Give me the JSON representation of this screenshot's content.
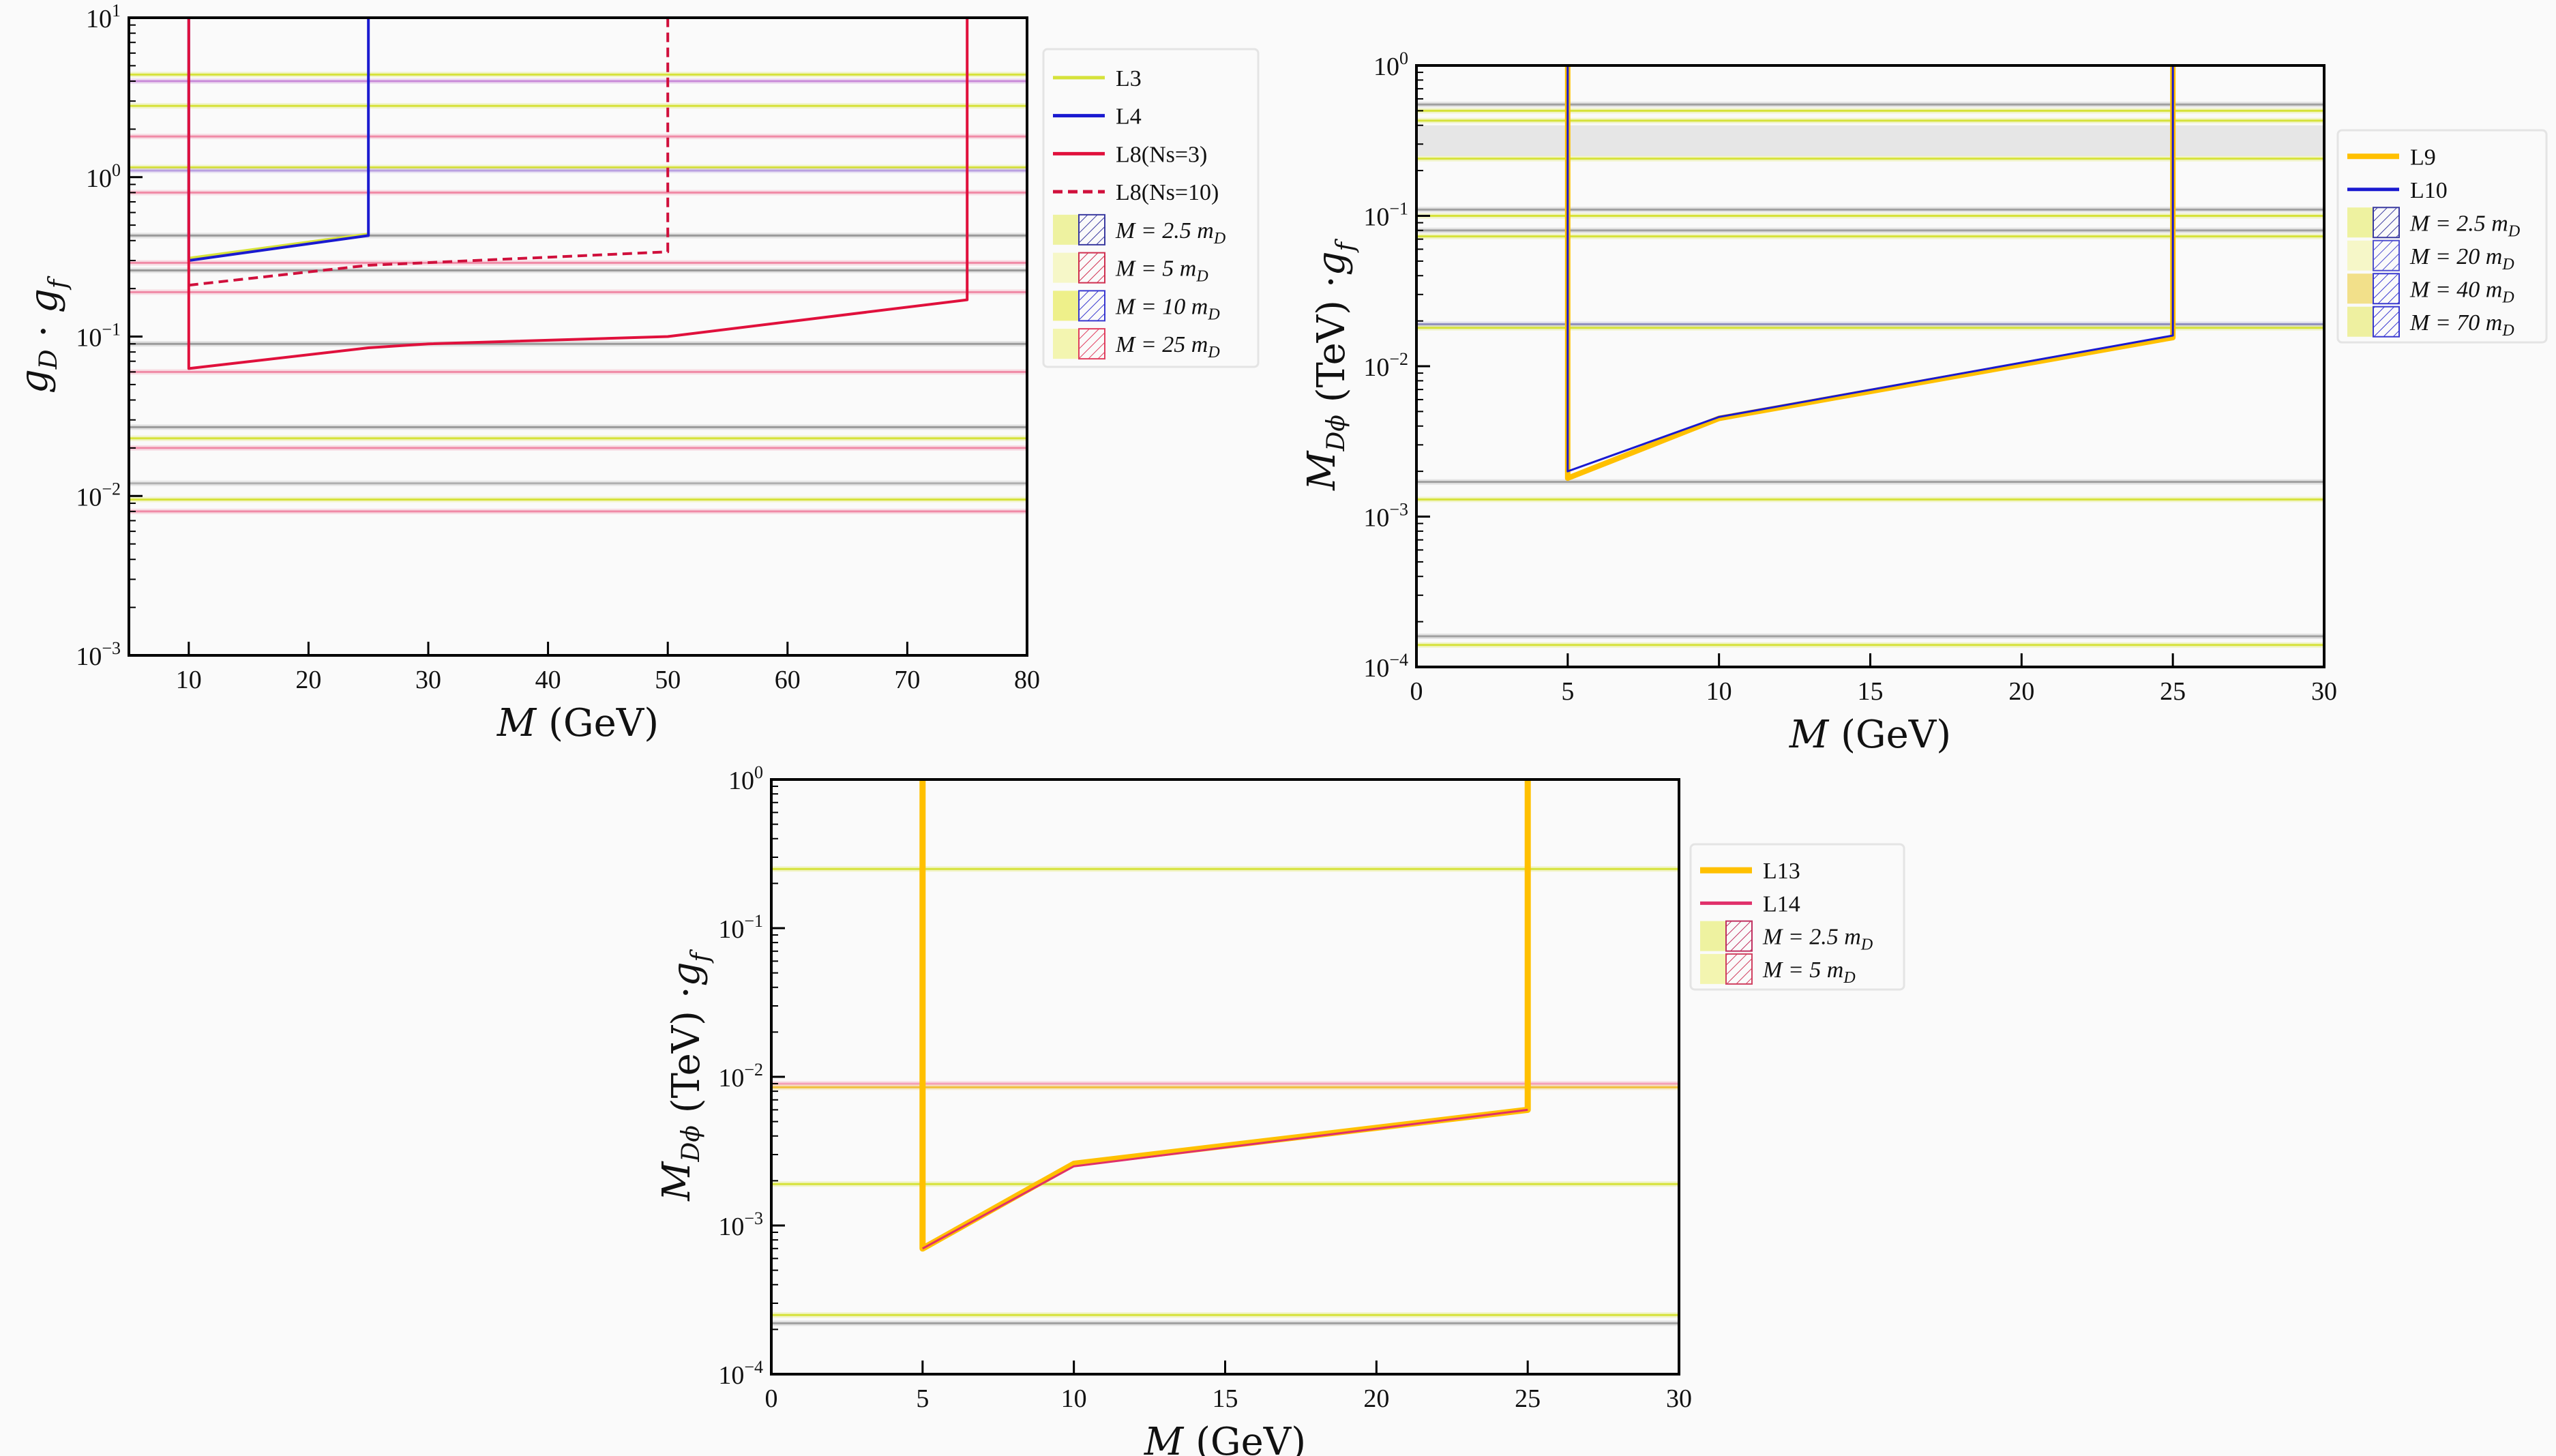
{
  "chart_data": [
    {
      "type": "line",
      "xlabel": [
        [
          "M",
          ""
        ],
        [
          " (GeV)",
          ""
        ]
      ],
      "ylabel": [
        [
          "g",
          "D"
        ],
        [
          " · ",
          ""
        ],
        [
          "g",
          "f"
        ]
      ],
      "xlim": [
        5,
        80
      ],
      "ylim": [
        0.001,
        10
      ],
      "yscale": "log",
      "xticks": [
        10,
        20,
        30,
        40,
        50,
        60,
        70,
        80
      ],
      "yticks": [
        {
          "base": "10",
          "exp": "−3",
          "v": 0.001
        },
        {
          "base": "10",
          "exp": "−2",
          "v": 0.01
        },
        {
          "base": "10",
          "exp": "−1",
          "v": 0.1
        },
        {
          "base": "10",
          "exp": "0",
          "v": 1
        },
        {
          "base": "10",
          "exp": "1",
          "v": 10
        }
      ],
      "grid": false,
      "legend_position": "outside-right-top",
      "bands": [
        {
          "y": 4.4,
          "color": "#d6e23a"
        },
        {
          "y": 4.0,
          "color": "#c98ad8"
        },
        {
          "y": 2.8,
          "color": "#d6e23a"
        },
        {
          "y": 1.8,
          "color": "#f08aa6"
        },
        {
          "y": 1.15,
          "color": "#d6e23a"
        },
        {
          "y": 1.1,
          "color": "#b9a0e0"
        },
        {
          "y": 0.8,
          "color": "#f08aa6"
        },
        {
          "y": 0.43,
          "color": "#9a9a9a"
        },
        {
          "y": 0.29,
          "color": "#f08aa6"
        },
        {
          "y": 0.26,
          "color": "#9a9a9a"
        },
        {
          "y": 0.19,
          "color": "#f08aa6"
        },
        {
          "y": 0.09,
          "color": "#9a9a9a"
        },
        {
          "y": 0.06,
          "color": "#f08aa6"
        },
        {
          "y": 0.027,
          "color": "#9a9a9a"
        },
        {
          "y": 0.023,
          "color": "#d6e23a"
        },
        {
          "y": 0.02,
          "color": "#f08aa6"
        },
        {
          "y": 0.012,
          "color": "#b0b0b0"
        },
        {
          "y": 0.0095,
          "color": "#d6e23a"
        },
        {
          "y": 0.008,
          "color": "#f08aa6"
        }
      ],
      "series": [
        {
          "name": "L3",
          "color": "#d6e23a",
          "width": 4,
          "dash": "",
          "points": [
            [
              10,
              0.31
            ],
            [
              25,
              0.44
            ]
          ]
        },
        {
          "name": "L4",
          "color": "#1a1ad0",
          "width": 4,
          "dash": "",
          "points": [
            [
              10,
              10
            ],
            [
              10,
              0.3
            ],
            [
              25,
              0.43
            ],
            [
              25,
              10
            ]
          ]
        },
        {
          "name": "L8(Ns=3)",
          "color": "#e0103c",
          "width": 4,
          "dash": "",
          "points": [
            [
              10,
              10
            ],
            [
              10,
              0.063
            ],
            [
              25,
              0.085
            ],
            [
              30,
              0.09
            ],
            [
              50,
              0.1
            ],
            [
              75,
              0.17
            ],
            [
              75,
              10
            ]
          ]
        },
        {
          "name": "L8(Ns=10)",
          "color": "#d0103c",
          "width": 4,
          "dash": "14,8",
          "points": [
            [
              10,
              0.21
            ],
            [
              25,
              0.28
            ],
            [
              50,
              0.34
            ],
            [
              50,
              10
            ]
          ]
        }
      ],
      "legend": [
        {
          "kind": "line",
          "label": "L3",
          "color": "#d6e23a",
          "dash": ""
        },
        {
          "kind": "line",
          "label": "L4",
          "color": "#1a1ad0",
          "dash": ""
        },
        {
          "kind": "line",
          "label": "L8(Ns=3)",
          "color": "#e0103c",
          "dash": ""
        },
        {
          "kind": "line",
          "label": "L8(Ns=10)",
          "color": "#d0103c",
          "dash": "14,8"
        },
        {
          "kind": "patch",
          "label": "M = 2.5 m",
          "sub": "D",
          "fill": "#eef2a0",
          "hatch": "#3a3aa0"
        },
        {
          "kind": "patch",
          "label": "M = 5 m",
          "sub": "D",
          "fill": "#f6f7c8",
          "hatch": "#d03050"
        },
        {
          "kind": "patch",
          "label": "M = 10 m",
          "sub": "D",
          "fill": "#eef08a",
          "hatch": "#3a3ad0"
        },
        {
          "kind": "patch",
          "label": "M = 25 m",
          "sub": "D",
          "fill": "#f3f5b0",
          "hatch": "#e04060"
        }
      ]
    },
    {
      "type": "line",
      "xlabel": [
        [
          "M",
          ""
        ],
        [
          " (GeV)",
          ""
        ]
      ],
      "ylabel": [
        [
          "M",
          "Dϕ"
        ],
        [
          "  (TeV) ·",
          ""
        ],
        [
          "g",
          "f"
        ]
      ],
      "xlim": [
        0,
        30
      ],
      "ylim": [
        0.0001,
        1
      ],
      "yscale": "log",
      "xticks": [
        0,
        5,
        10,
        15,
        20,
        25,
        30
      ],
      "yticks": [
        {
          "base": "10",
          "exp": "−4",
          "v": 0.0001
        },
        {
          "base": "10",
          "exp": "−3",
          "v": 0.001
        },
        {
          "base": "10",
          "exp": "−2",
          "v": 0.01
        },
        {
          "base": "10",
          "exp": "−1",
          "v": 0.1
        },
        {
          "base": "10",
          "exp": "0",
          "v": 1
        }
      ],
      "grid": false,
      "legend_position": "outside-right",
      "bands": [
        {
          "y": 0.55,
          "color": "#a0a0a0"
        },
        {
          "y": 0.5,
          "color": "#d6e23a"
        },
        {
          "y": 0.43,
          "color": "#d6e23a"
        },
        {
          "y": 0.32,
          "color": "#d8d8d8",
          "thick": true
        },
        {
          "y": 0.24,
          "color": "#d6e23a"
        },
        {
          "y": 0.11,
          "color": "#a0a0a0"
        },
        {
          "y": 0.1,
          "color": "#d6e23a"
        },
        {
          "y": 0.08,
          "color": "#a0a0a0"
        },
        {
          "y": 0.073,
          "color": "#d6e23a"
        },
        {
          "y": 0.019,
          "color": "#9090c0"
        },
        {
          "y": 0.018,
          "color": "#d6e23a"
        },
        {
          "y": 0.0017,
          "color": "#a0a0a0"
        },
        {
          "y": 0.0013,
          "color": "#d6e23a"
        },
        {
          "y": 0.00016,
          "color": "#a0a0a0"
        },
        {
          "y": 0.00014,
          "color": "#d6e23a"
        }
      ],
      "series": [
        {
          "name": "L9",
          "color": "#ffc000",
          "width": 8,
          "dash": "",
          "points": [
            [
              5,
              1
            ],
            [
              5,
              0.0018
            ],
            [
              10,
              0.0045
            ],
            [
              25,
              0.0155
            ],
            [
              25,
              1
            ]
          ]
        },
        {
          "name": "L10",
          "color": "#1a1ad0",
          "width": 3,
          "dash": "",
          "points": [
            [
              5,
              1
            ],
            [
              5,
              0.002
            ],
            [
              10,
              0.0046
            ],
            [
              25,
              0.016
            ],
            [
              25,
              1
            ]
          ]
        }
      ],
      "legend": [
        {
          "kind": "line",
          "label": "L9",
          "color": "#ffc000",
          "dash": "",
          "width": 8
        },
        {
          "kind": "line",
          "label": "L10",
          "color": "#1a1ad0",
          "dash": ""
        },
        {
          "kind": "patch",
          "label": "M = 2.5 m",
          "sub": "D",
          "fill": "#eef2a0",
          "hatch": "#3a3aa0"
        },
        {
          "kind": "patch",
          "label": "M = 20 m",
          "sub": "D",
          "fill": "#f6f7c8",
          "hatch": "#5050d0"
        },
        {
          "kind": "patch",
          "label": "M = 40 m",
          "sub": "D",
          "fill": "#f2e08a",
          "hatch": "#3a3ad0"
        },
        {
          "kind": "patch",
          "label": "M = 70 m",
          "sub": "D",
          "fill": "#eef0a0",
          "hatch": "#3a3ad0"
        }
      ]
    },
    {
      "type": "line",
      "xlabel": [
        [
          "M",
          ""
        ],
        [
          " (GeV)",
          ""
        ]
      ],
      "ylabel": [
        [
          "M",
          "Dϕ"
        ],
        [
          "  (TeV) ·",
          ""
        ],
        [
          "g",
          "f"
        ]
      ],
      "xlim": [
        0,
        30
      ],
      "ylim": [
        0.0001,
        1
      ],
      "yscale": "log",
      "xticks": [
        0,
        5,
        10,
        15,
        20,
        25,
        30
      ],
      "yticks": [
        {
          "base": "10",
          "exp": "−4",
          "v": 0.0001
        },
        {
          "base": "10",
          "exp": "−3",
          "v": 0.001
        },
        {
          "base": "10",
          "exp": "−2",
          "v": 0.01
        },
        {
          "base": "10",
          "exp": "−1",
          "v": 0.1
        },
        {
          "base": "10",
          "exp": "0",
          "v": 1
        }
      ],
      "grid": false,
      "legend_position": "outside-right",
      "bands": [
        {
          "y": 0.25,
          "color": "#d6e23a"
        },
        {
          "y": 0.009,
          "color": "#f5a0b8"
        },
        {
          "y": 0.0085,
          "color": "#f0c040"
        },
        {
          "y": 0.0019,
          "color": "#d6e23a"
        },
        {
          "y": 0.00025,
          "color": "#d6e23a"
        },
        {
          "y": 0.00022,
          "color": "#a0a0a0"
        }
      ],
      "series": [
        {
          "name": "L13",
          "color": "#ffc000",
          "width": 9,
          "dash": "",
          "points": [
            [
              5,
              1
            ],
            [
              5,
              0.0007
            ],
            [
              10,
              0.0026
            ],
            [
              25,
              0.006
            ],
            [
              25,
              1
            ]
          ]
        },
        {
          "name": "L14",
          "color": "#e0306a",
          "width": 3,
          "dash": "",
          "points": [
            [
              5,
              0.0007
            ],
            [
              10,
              0.0025
            ],
            [
              25,
              0.006
            ]
          ]
        }
      ],
      "legend": [
        {
          "kind": "line",
          "label": "L13",
          "color": "#ffc000",
          "dash": "",
          "width": 9
        },
        {
          "kind": "line",
          "label": "L14",
          "color": "#e0306a",
          "dash": ""
        },
        {
          "kind": "patch",
          "label": "M = 2.5 m",
          "sub": "D",
          "fill": "#eef2a0",
          "hatch": "#c03060"
        },
        {
          "kind": "patch",
          "label": "M = 5 m",
          "sub": "D",
          "fill": "#f3f5b0",
          "hatch": "#d04060"
        }
      ]
    }
  ]
}
